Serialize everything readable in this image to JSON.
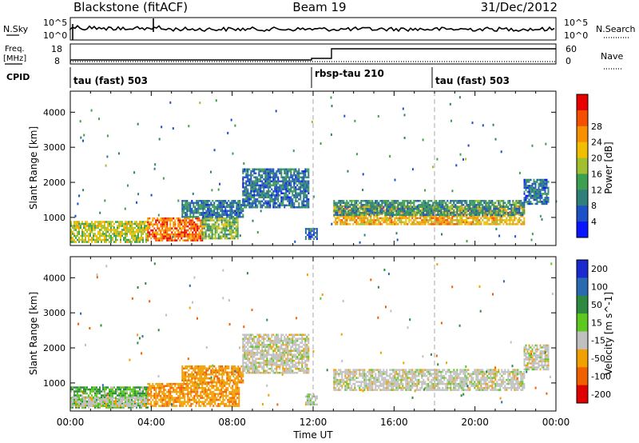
{
  "header": {
    "station": "Blackstone (fitACF)",
    "beam": "Beam 19",
    "date": "31/Dec/2012"
  },
  "noise_panel": {
    "left_label": "N.Sky",
    "right_label": "N.Search",
    "tick_top": "10^5",
    "tick_bottom": "10^0"
  },
  "freq_panel": {
    "left_label_line1": "Freq.",
    "left_label_line2": "[MHz]",
    "left_ticks": [
      "18",
      "8"
    ],
    "right_label": "Nave",
    "right_ticks": [
      "60",
      "0"
    ]
  },
  "cpid": {
    "label": "CPID",
    "modes": [
      {
        "name": "tau (fast) 503",
        "start_hour": 0
      },
      {
        "name": "rbsp-tau 210",
        "start_hour": 12
      },
      {
        "name": "tau (fast) 503",
        "start_hour": 18
      }
    ]
  },
  "chart_data": [
    {
      "type": "heatmap",
      "panel": "power",
      "ylabel": "Slant Range [km]",
      "yticks": [
        "1000",
        "2000",
        "3000",
        "4000"
      ],
      "ylim": [
        200,
        4600
      ],
      "xlim": [
        0,
        24
      ],
      "xticks": [
        "00:00",
        "04:00",
        "08:00",
        "12:00",
        "16:00",
        "20:00",
        "00:00"
      ],
      "colorbar": {
        "label": "Power [dB]",
        "ticks": [
          "4",
          "8",
          "12",
          "16",
          "20",
          "24",
          "28"
        ],
        "colors": [
          "#0a14ff",
          "#1e50c8",
          "#2f7f7a",
          "#3ca050",
          "#a0c030",
          "#f0c000",
          "#f89000",
          "#f45000",
          "#e80000"
        ]
      },
      "regions": [
        {
          "t0": 0.0,
          "t1": 3.8,
          "r0": 320,
          "r1": 900,
          "level": 16
        },
        {
          "t0": 3.8,
          "t1": 6.5,
          "r0": 350,
          "r1": 1000,
          "level": 24
        },
        {
          "t0": 6.5,
          "t1": 8.3,
          "r0": 400,
          "r1": 1000,
          "level": 14
        },
        {
          "t0": 5.5,
          "t1": 8.5,
          "r0": 1000,
          "r1": 1500,
          "level": 8
        },
        {
          "t0": 8.5,
          "t1": 11.8,
          "r0": 1300,
          "r1": 2400,
          "level": 8
        },
        {
          "t0": 11.6,
          "t1": 12.2,
          "r0": 400,
          "r1": 700,
          "level": 6
        },
        {
          "t0": 13.0,
          "t1": 22.4,
          "r0": 800,
          "r1": 1350,
          "level": 20
        },
        {
          "t0": 13.0,
          "t1": 22.4,
          "r0": 1100,
          "r1": 1500,
          "level": 10
        },
        {
          "t0": 22.4,
          "t1": 23.6,
          "r0": 1400,
          "r1": 2100,
          "level": 8
        }
      ]
    },
    {
      "type": "heatmap",
      "panel": "velocity",
      "ylabel": "Slant Range [km]",
      "yticks": [
        "1000",
        "2000",
        "3000",
        "4000"
      ],
      "ylim": [
        200,
        4600
      ],
      "xlim": [
        0,
        24
      ],
      "xticks": [
        "00:00",
        "04:00",
        "08:00",
        "12:00",
        "16:00",
        "20:00",
        "00:00"
      ],
      "xlabel": "Time UT",
      "colorbar": {
        "label": "Velocity [m s^-1]",
        "ticks": [
          "200",
          "100",
          "50",
          "15",
          "-15",
          "-50",
          "-100",
          "-200"
        ],
        "colors": [
          "#1a2ad0",
          "#2a6ab0",
          "#2e8a40",
          "#5ec81e",
          "#c0c0c0",
          "#f0a000",
          "#f06000",
          "#e00000"
        ]
      },
      "regions": [
        {
          "t0": 0.0,
          "t1": 3.8,
          "r0": 320,
          "r1": 900,
          "level": 30
        },
        {
          "t0": 0.0,
          "t1": 3.8,
          "r0": 350,
          "r1": 600,
          "level": 0
        },
        {
          "t0": 3.8,
          "t1": 8.3,
          "r0": 350,
          "r1": 1000,
          "level": -40
        },
        {
          "t0": 5.5,
          "t1": 8.5,
          "r0": 1000,
          "r1": 1500,
          "level": -40
        },
        {
          "t0": 8.5,
          "t1": 11.8,
          "r0": 1300,
          "r1": 2400,
          "level": 0
        },
        {
          "t0": 11.6,
          "t1": 12.2,
          "r0": 400,
          "r1": 700,
          "level": 0
        },
        {
          "t0": 13.0,
          "t1": 22.4,
          "r0": 800,
          "r1": 1400,
          "level": 0
        },
        {
          "t0": 22.4,
          "t1": 23.6,
          "r0": 1400,
          "r1": 2100,
          "level": 0
        }
      ]
    }
  ]
}
